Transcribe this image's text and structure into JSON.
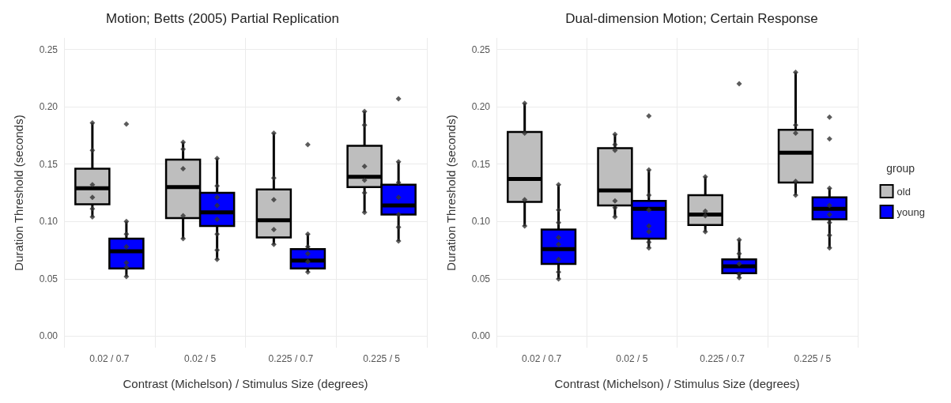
{
  "chart_data": [
    {
      "type": "box",
      "title": "Motion; Betts (2005) Partial Replication",
      "xlabel": "Contrast (Michelson) / Stimulus Size (degrees)",
      "ylabel": "Duration Threshold (seconds)",
      "categories": [
        "0.02 / 0.7",
        "0.02 / 5",
        "0.225 / 0.7",
        "0.225 / 5"
      ],
      "ylim": [
        -0.01,
        0.26
      ],
      "yticks": [
        {
          "value": 0,
          "label": "0.00"
        },
        {
          "value": 0.05,
          "label": "0.05"
        },
        {
          "value": 0.1,
          "label": "0.10"
        },
        {
          "value": 0.15,
          "label": "0.15"
        },
        {
          "value": 0.2,
          "label": "0.20"
        },
        {
          "value": 0.25,
          "label": "0.25"
        }
      ],
      "grid": true,
      "legend": false,
      "series": [
        {
          "color": "#bebebe",
          "boxes": [
            {
              "low": 0.104,
              "q1": 0.115,
              "median": 0.129,
              "q3": 0.146,
              "high": 0.186
            },
            {
              "low": 0.085,
              "q1": 0.103,
              "median": 0.13,
              "q3": 0.154,
              "high": 0.169
            },
            {
              "low": 0.08,
              "q1": 0.086,
              "median": 0.101,
              "q3": 0.128,
              "high": 0.177
            },
            {
              "low": 0.108,
              "q1": 0.13,
              "median": 0.139,
              "q3": 0.166,
              "high": 0.196
            }
          ]
        },
        {
          "color": "#0000ff",
          "boxes": [
            {
              "low": 0.052,
              "q1": 0.059,
              "median": 0.074,
              "q3": 0.085,
              "high": 0.1,
              "outliers": [
                0.185
              ]
            },
            {
              "low": 0.067,
              "q1": 0.096,
              "median": 0.108,
              "q3": 0.125,
              "high": 0.155
            },
            {
              "low": 0.056,
              "q1": 0.059,
              "median": 0.066,
              "q3": 0.076,
              "high": 0.089,
              "outliers": [
                0.167
              ]
            },
            {
              "low": 0.083,
              "q1": 0.106,
              "median": 0.114,
              "q3": 0.132,
              "high": 0.152,
              "outliers": [
                0.207
              ]
            }
          ]
        },
        {
          "type": "scatter",
          "color": "#333333",
          "x": [
            "0.02 / 0.7",
            "0.02 / 0.7",
            "0.02 / 0.7",
            "0.02 / 0.7",
            "0.02 / 0.7",
            "0.02 / 0.7",
            "0.02 / 5",
            "0.02 / 5",
            "0.02 / 5",
            "0.02 / 5",
            "0.02 / 5",
            "0.225 / 0.7",
            "0.225 / 0.7",
            "0.225 / 0.7",
            "0.225 / 0.7",
            "0.225 / 0.7",
            "0.225 / 5",
            "0.225 / 5",
            "0.225 / 5",
            "0.225 / 5",
            "0.225 / 5",
            "0.225 / 5"
          ],
          "values": [
            0.186,
            0.162,
            0.132,
            0.121,
            0.111,
            0.104,
            0.169,
            0.163,
            0.146,
            0.105,
            0.085,
            0.177,
            0.138,
            0.119,
            0.093,
            0.08,
            0.196,
            0.184,
            0.148,
            0.136,
            0.125,
            0.108
          ]
        },
        {
          "type": "scatter",
          "color": "#333333",
          "x": [
            "0.02 / 0.7",
            "0.02 / 0.7",
            "0.02 / 0.7",
            "0.02 / 0.7",
            "0.02 / 0.7",
            "0.02 / 0.7",
            "0.02 / 5",
            "0.02 / 5",
            "0.02 / 5",
            "0.02 / 5",
            "0.02 / 5",
            "0.02 / 5",
            "0.02 / 5",
            "0.02 / 5",
            "0.225 / 0.7",
            "0.225 / 0.7",
            "0.225 / 0.7",
            "0.225 / 0.7",
            "0.225 / 0.7",
            "0.225 / 5",
            "0.225 / 5",
            "0.225 / 5",
            "0.225 / 5",
            "0.225 / 5",
            "0.225 / 5"
          ],
          "values": [
            0.1,
            0.089,
            0.078,
            0.064,
            0.06,
            0.052,
            0.155,
            0.131,
            0.121,
            0.114,
            0.102,
            0.089,
            0.075,
            0.067,
            0.089,
            0.078,
            0.072,
            0.065,
            0.056,
            0.152,
            0.134,
            0.121,
            0.106,
            0.095,
            0.083
          ]
        }
      ]
    },
    {
      "type": "box",
      "title": "Dual-dimension Motion; Certain Response",
      "xlabel": "Contrast (Michelson) / Stimulus Size (degrees)",
      "ylabel": "Duration Threshold (seconds)",
      "categories": [
        "0.02 / 0.7",
        "0.02 / 5",
        "0.225 / 0.7",
        "0.225 / 5"
      ],
      "ylim": [
        -0.01,
        0.26
      ],
      "yticks": [
        {
          "value": 0,
          "label": "0.00"
        },
        {
          "value": 0.05,
          "label": "0.05"
        },
        {
          "value": 0.1,
          "label": "0.10"
        },
        {
          "value": 0.15,
          "label": "0.15"
        },
        {
          "value": 0.2,
          "label": "0.20"
        },
        {
          "value": 0.25,
          "label": "0.25"
        }
      ],
      "grid": true,
      "legend": "right",
      "legend_title": "group",
      "series": [
        {
          "name": "old",
          "color": "#bebebe",
          "boxes": [
            {
              "low": 0.096,
              "q1": 0.117,
              "median": 0.137,
              "q3": 0.178,
              "high": 0.203
            },
            {
              "low": 0.104,
              "q1": 0.114,
              "median": 0.127,
              "q3": 0.164,
              "high": 0.176
            },
            {
              "low": 0.091,
              "q1": 0.097,
              "median": 0.106,
              "q3": 0.123,
              "high": 0.139
            },
            {
              "low": 0.123,
              "q1": 0.134,
              "median": 0.16,
              "q3": 0.18,
              "high": 0.23
            }
          ]
        },
        {
          "name": "young",
          "color": "#0000ff",
          "boxes": [
            {
              "low": 0.05,
              "q1": 0.063,
              "median": 0.076,
              "q3": 0.093,
              "high": 0.132
            },
            {
              "low": 0.077,
              "q1": 0.085,
              "median": 0.111,
              "q3": 0.118,
              "high": 0.145,
              "outliers": [
                0.192
              ]
            },
            {
              "low": 0.051,
              "q1": 0.055,
              "median": 0.061,
              "q3": 0.067,
              "high": 0.084,
              "outliers": [
                0.22
              ]
            },
            {
              "low": 0.077,
              "q1": 0.102,
              "median": 0.111,
              "q3": 0.121,
              "high": 0.129,
              "outliers": [
                0.191,
                0.172
              ]
            }
          ]
        },
        {
          "type": "scatter",
          "color": "#333333",
          "x": [
            "0.02 / 0.7",
            "0.02 / 0.7",
            "0.02 / 0.7",
            "0.02 / 0.7",
            "0.02 / 5",
            "0.02 / 5",
            "0.02 / 5",
            "0.02 / 5",
            "0.02 / 5",
            "0.02 / 5",
            "0.225 / 0.7",
            "0.225 / 0.7",
            "0.225 / 0.7",
            "0.225 / 0.7",
            "0.225 / 5",
            "0.225 / 5",
            "0.225 / 5",
            "0.225 / 5",
            "0.225 / 5"
          ],
          "values": [
            0.203,
            0.177,
            0.119,
            0.096,
            0.176,
            0.167,
            0.162,
            0.118,
            0.112,
            0.104,
            0.139,
            0.109,
            0.105,
            0.091,
            0.23,
            0.184,
            0.177,
            0.135,
            0.123
          ]
        },
        {
          "type": "scatter",
          "color": "#333333",
          "x": [
            "0.02 / 0.7",
            "0.02 / 0.7",
            "0.02 / 0.7",
            "0.02 / 0.7",
            "0.02 / 0.7",
            "0.02 / 0.7",
            "0.02 / 0.7",
            "0.02 / 0.7",
            "0.02 / 5",
            "0.02 / 5",
            "0.02 / 5",
            "0.02 / 5",
            "0.02 / 5",
            "0.02 / 5",
            "0.02 / 5",
            "0.225 / 0.7",
            "0.225 / 0.7",
            "0.225 / 0.7",
            "0.225 / 0.7",
            "0.225 / 0.7",
            "0.225 / 5",
            "0.225 / 5",
            "0.225 / 5",
            "0.225 / 5",
            "0.225 / 5",
            "0.225 / 5"
          ],
          "values": [
            0.132,
            0.11,
            0.099,
            0.086,
            0.08,
            0.067,
            0.056,
            0.05,
            0.145,
            0.123,
            0.11,
            0.096,
            0.091,
            0.082,
            0.077,
            0.084,
            0.072,
            0.063,
            0.054,
            0.051,
            0.129,
            0.114,
            0.106,
            0.099,
            0.088,
            0.077
          ]
        }
      ]
    }
  ]
}
